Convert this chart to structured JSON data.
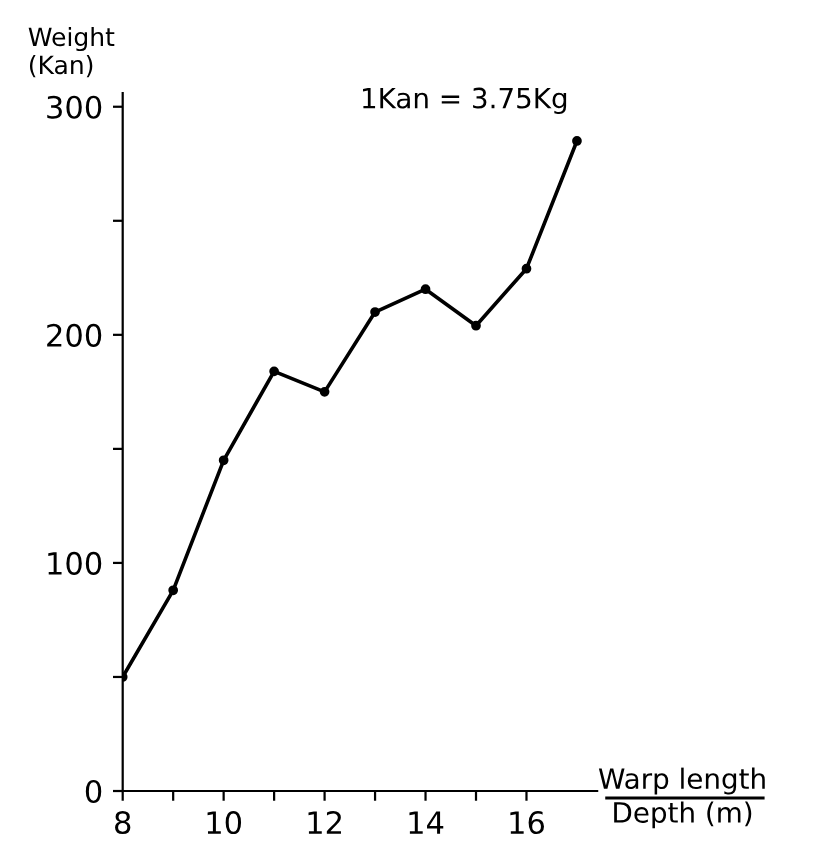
{
  "chart_data": {
    "type": "line",
    "xlabel": "Warp length\nDepth (m)",
    "ylabel": "Weight\n(Kan)",
    "annotations": [
      "1Kan = 3.75Kg"
    ],
    "x": [
      8,
      9,
      10,
      11,
      12,
      13,
      14,
      15,
      16,
      17
    ],
    "series": [
      {
        "color": "#000000",
        "values": [
          50,
          88,
          145,
          184,
          175,
          210,
          220,
          204,
          229,
          285
        ]
      }
    ],
    "xlim": [
      8,
      17.4
    ],
    "ylim": [
      0,
      306
    ],
    "xticks": [
      8,
      {
        "value": 9,
        "label": null
      },
      10,
      {
        "value": 11,
        "label": null
      },
      12,
      {
        "value": 13,
        "label": null
      },
      14,
      {
        "value": 15,
        "label": null
      },
      16
    ],
    "yticks": [
      0,
      {
        "value": 50,
        "label": null
      },
      100,
      {
        "value": 150,
        "label": null
      },
      200,
      {
        "value": 250,
        "label": null
      },
      300
    ],
    "marker": "circle",
    "line_style": "solid",
    "grid": false,
    "legend": false
  }
}
